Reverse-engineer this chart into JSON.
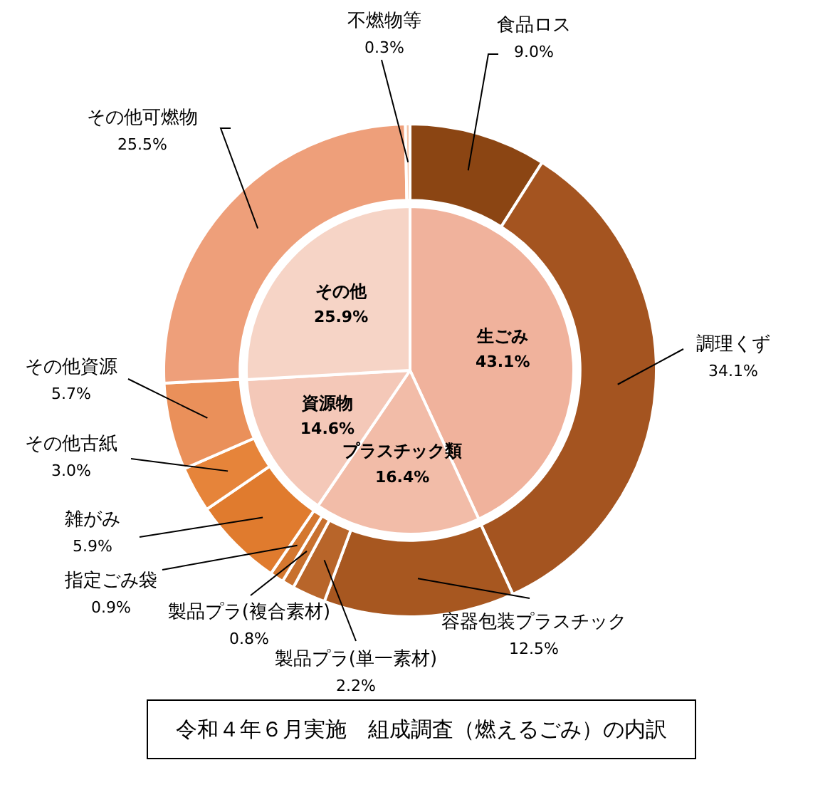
{
  "chart_data": [
    {
      "type": "donut",
      "title": "令和４年６月実施　組成調査（燃えるごみ）の内訳",
      "categories": [
        "食品ロス",
        "調理くず",
        "容器包装プラスチック",
        "製品プラ(単一素材)",
        "製品プラ(複合素材)",
        "指定ごみ袋",
        "雑がみ",
        "その他古紙",
        "その他資源",
        "その他可燃物",
        "不燃物等"
      ],
      "values": [
        9.0,
        34.1,
        12.5,
        2.2,
        0.8,
        0.9,
        5.9,
        3.0,
        5.7,
        25.5,
        0.3
      ],
      "value_labels": [
        "9.0%",
        "34.1%",
        "12.5%",
        "2.2%",
        "0.8%",
        "0.9%",
        "5.9%",
        "3.0%",
        "5.7%",
        "25.5%",
        "0.3%"
      ],
      "colors": [
        "#8b4513",
        "#a45420",
        "#a75720",
        "#b8652a",
        "#c8702e",
        "#d4772f",
        "#e07b2e",
        "#e6843a",
        "#ea905a",
        "#ee9f7a",
        "#f4c4a8"
      ],
      "legend": false
    },
    {
      "type": "pie",
      "categories": [
        "生ごみ",
        "プラスチック類",
        "資源物",
        "その他"
      ],
      "values": [
        43.1,
        16.4,
        14.6,
        25.9
      ],
      "value_labels": [
        "43.1%",
        "16.4%",
        "14.6%",
        "25.9%"
      ],
      "colors": [
        "#f0b29c",
        "#f2bca8",
        "#f4c8b8",
        "#f6d4c6"
      ],
      "legend": false
    }
  ]
}
